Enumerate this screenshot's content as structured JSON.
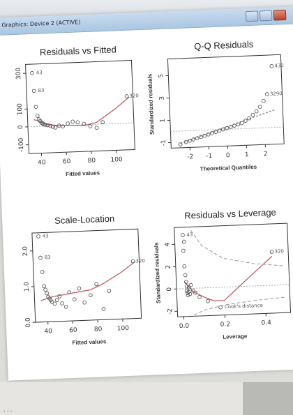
{
  "window": {
    "title": "Graphics: Device 2 (ACTIVE)"
  },
  "console_line": "                 ...",
  "chart_data": [
    {
      "type": "scatter",
      "title": "Residuals vs Fitted",
      "xlabel": "Fitted values",
      "ylabel": "",
      "x_ticks": [
        "40",
        "60",
        "80",
        "100"
      ],
      "y_ticks": [
        "-100",
        "0",
        "100",
        "300"
      ],
      "xlim": [
        30,
        115
      ],
      "ylim": [
        -150,
        350
      ],
      "points": [
        [
          35,
          300
        ],
        [
          36,
          200
        ],
        [
          37,
          110
        ],
        [
          38,
          60
        ],
        [
          39,
          40
        ],
        [
          40,
          30
        ],
        [
          41,
          20
        ],
        [
          42,
          15
        ],
        [
          43,
          10
        ],
        [
          44,
          8
        ],
        [
          46,
          5
        ],
        [
          48,
          0
        ],
        [
          50,
          -5
        ],
        [
          52,
          -10
        ],
        [
          55,
          0
        ],
        [
          58,
          -5
        ],
        [
          62,
          10
        ],
        [
          66,
          20
        ],
        [
          70,
          15
        ],
        [
          75,
          5
        ],
        [
          80,
          -10
        ],
        [
          85,
          -20
        ],
        [
          90,
          10
        ],
        [
          110,
          150
        ]
      ],
      "smooth": [
        [
          35,
          40
        ],
        [
          45,
          10
        ],
        [
          55,
          0
        ],
        [
          65,
          0
        ],
        [
          75,
          -5
        ],
        [
          85,
          10
        ],
        [
          100,
          80
        ],
        [
          112,
          145
        ]
      ],
      "labels": [
        {
          "text": "43",
          "x": 36,
          "y": 300
        },
        {
          "text": "83",
          "x": 37,
          "y": 200
        },
        {
          "text": "320",
          "x": 110,
          "y": 150
        }
      ]
    },
    {
      "type": "scatter",
      "title": "Q-Q Residuals",
      "xlabel": "Theoretical Quantiles",
      "ylabel": "Standardized residuals",
      "x_ticks": [
        "-2",
        "-1",
        "0",
        "1",
        "2"
      ],
      "y_ticks": [
        "-1",
        "1",
        "3",
        "5"
      ],
      "xlim": [
        -3,
        3
      ],
      "ylim": [
        -1.5,
        6.5
      ],
      "points": [
        [
          -2.5,
          -1.2
        ],
        [
          -2.2,
          -1
        ],
        [
          -2,
          -0.9
        ],
        [
          -1.8,
          -0.8
        ],
        [
          -1.6,
          -0.7
        ],
        [
          -1.4,
          -0.6
        ],
        [
          -1.2,
          -0.5
        ],
        [
          -1,
          -0.4
        ],
        [
          -0.8,
          -0.3
        ],
        [
          -0.6,
          -0.2
        ],
        [
          -0.4,
          -0.1
        ],
        [
          -0.2,
          0
        ],
        [
          0,
          0.1
        ],
        [
          0.2,
          0.2
        ],
        [
          0.4,
          0.3
        ],
        [
          0.6,
          0.4
        ],
        [
          0.8,
          0.5
        ],
        [
          1,
          0.7
        ],
        [
          1.2,
          0.9
        ],
        [
          1.4,
          1.2
        ],
        [
          1.6,
          1.5
        ],
        [
          1.8,
          1.9
        ],
        [
          2.0,
          2.4
        ],
        [
          2.2,
          3.0
        ],
        [
          2.5,
          5.5
        ]
      ],
      "reference_line": [
        [
          -2.5,
          -1.1
        ],
        [
          2.6,
          1.6
        ]
      ],
      "labels": [
        {
          "text": "430",
          "x": 2.5,
          "y": 5.5
        },
        {
          "text": "3290",
          "x": 2.2,
          "y": 3.0
        }
      ]
    },
    {
      "type": "scatter",
      "title": "Scale-Location",
      "xlabel": "Fitted values",
      "ylabel": "",
      "x_ticks": [
        "40",
        "60",
        "80",
        "100"
      ],
      "y_ticks": [
        "0.0",
        "1.0",
        "2.0"
      ],
      "xlim": [
        30,
        115
      ],
      "ylim": [
        0,
        2.5
      ],
      "points": [
        [
          35,
          2.4
        ],
        [
          36,
          1.8
        ],
        [
          37,
          1.4
        ],
        [
          38,
          1.0
        ],
        [
          39,
          0.9
        ],
        [
          40,
          0.8
        ],
        [
          41,
          0.7
        ],
        [
          42,
          0.65
        ],
        [
          43,
          0.6
        ],
        [
          44,
          0.55
        ],
        [
          46,
          0.5
        ],
        [
          48,
          0.6
        ],
        [
          50,
          0.7
        ],
        [
          52,
          0.5
        ],
        [
          55,
          0.4
        ],
        [
          58,
          0.8
        ],
        [
          62,
          0.6
        ],
        [
          66,
          0.9
        ],
        [
          70,
          0.5
        ],
        [
          75,
          0.7
        ],
        [
          80,
          1.0
        ],
        [
          85,
          0.3
        ],
        [
          90,
          0.8
        ],
        [
          110,
          1.6
        ]
      ],
      "smooth": [
        [
          35,
          0.6
        ],
        [
          45,
          0.7
        ],
        [
          55,
          0.75
        ],
        [
          65,
          0.8
        ],
        [
          75,
          0.85
        ],
        [
          85,
          1.0
        ],
        [
          100,
          1.3
        ],
        [
          112,
          1.6
        ]
      ],
      "labels": [
        {
          "text": "43",
          "x": 36,
          "y": 2.4
        },
        {
          "text": "83",
          "x": 37,
          "y": 1.8
        },
        {
          "text": "320",
          "x": 110,
          "y": 1.6
        }
      ]
    },
    {
      "type": "scatter",
      "title": "Residuals vs Leverage",
      "xlabel": "Leverage",
      "ylabel": "Standardized residuals",
      "x_ticks": [
        "0.0",
        "0.2",
        "0.4"
      ],
      "y_ticks": [
        "-2",
        "0",
        "2",
        "4"
      ],
      "xlim": [
        -0.03,
        0.52
      ],
      "ylim": [
        -2.5,
        5.5
      ],
      "points": [
        [
          0.01,
          4.8
        ],
        [
          0.015,
          4.2
        ],
        [
          0.01,
          3.4
        ],
        [
          0.012,
          2.0
        ],
        [
          0.015,
          1.2
        ],
        [
          0.018,
          0.6
        ],
        [
          0.02,
          0.2
        ],
        [
          0.02,
          -0.2
        ],
        [
          0.022,
          -0.4
        ],
        [
          0.025,
          -0.6
        ],
        [
          0.028,
          -0.3
        ],
        [
          0.03,
          0.1
        ],
        [
          0.035,
          -0.5
        ],
        [
          0.04,
          0.3
        ],
        [
          0.05,
          -0.2
        ],
        [
          0.06,
          -0.4
        ],
        [
          0.08,
          -0.8
        ],
        [
          0.12,
          -1.2
        ],
        [
          0.18,
          -1.8
        ],
        [
          0.44,
          3.0
        ]
      ],
      "smooth": [
        [
          0.01,
          0.6
        ],
        [
          0.05,
          -0.3
        ],
        [
          0.1,
          -0.8
        ],
        [
          0.15,
          -1.2
        ],
        [
          0.2,
          -1.2
        ],
        [
          0.3,
          0.4
        ],
        [
          0.44,
          2.6
        ]
      ],
      "labels": [
        {
          "text": "43",
          "x": 0.015,
          "y": 4.8
        },
        {
          "text": "320",
          "x": 0.44,
          "y": 3.0
        }
      ],
      "cooks_label": "Cook's distance"
    }
  ]
}
